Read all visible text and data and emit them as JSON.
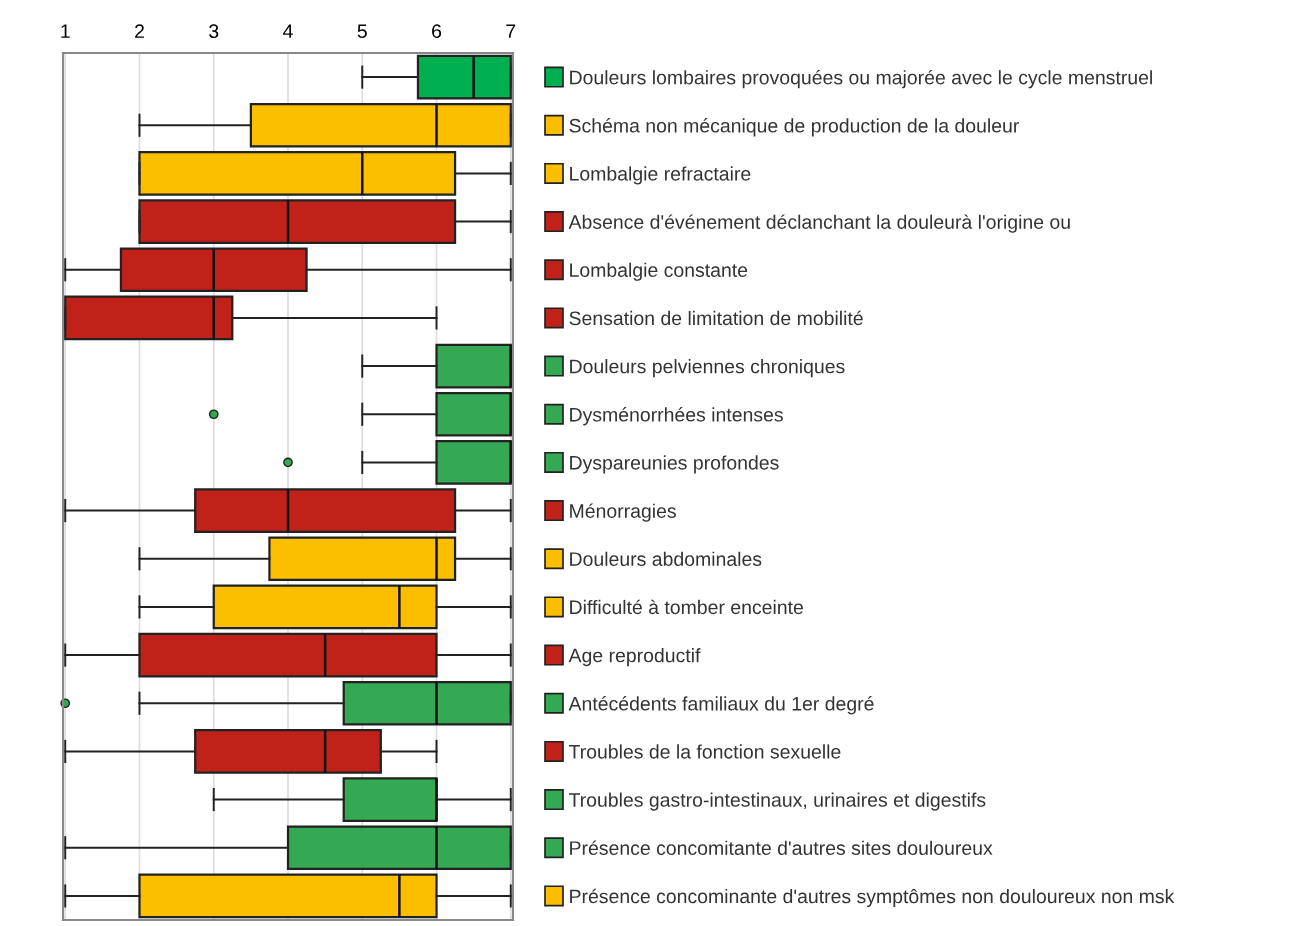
{
  "chart_data": {
    "type": "box",
    "orientation": "horizontal",
    "categories": [
      "Douleurs lombaires provoquées ou majorée avec le cycle menstruel",
      "Schéma non mécanique de production de la douleur",
      "Lombalgie refractaire",
      "Absence d'événement déclanchant la douleurà l'origine ou",
      "Lombalgie constante",
      "Sensation de limitation de mobilité",
      "Douleurs pelviennes chroniques",
      "Dysménorrhées intenses",
      "Dyspareunies profondes",
      "Ménorragies",
      "Douleurs abdominales",
      "Difficulté à tomber enceinte",
      "Age reproductif",
      "Antécédents familiaux du 1er degré",
      "Troubles de la fonction sexuelle",
      "Troubles gastro-intestinaux, urinaires et digestifs",
      "Présence concomitante d'autres sites douloureux",
      "Présence concominante d'autres symptômes non douloureux non msk"
    ],
    "colors": [
      "#00b050",
      "#fbbf00",
      "#fbbf00",
      "#c0221a",
      "#c0221a",
      "#c0221a",
      "#34a853",
      "#34a853",
      "#34a853",
      "#c0221a",
      "#fbbf00",
      "#fbbf00",
      "#c0221a",
      "#34a853",
      "#c0221a",
      "#34a853",
      "#34a853",
      "#fbbf00"
    ],
    "boxes": [
      {
        "low": 5,
        "q1": 5.75,
        "median": 6.5,
        "q3": 7,
        "high": 7
      },
      {
        "low": 2,
        "q1": 3.5,
        "median": 6,
        "q3": 7,
        "high": 7
      },
      {
        "low": 2,
        "q1": 2,
        "median": 5,
        "q3": 6.25,
        "high": 7
      },
      {
        "low": 2,
        "q1": 2,
        "median": 4,
        "q3": 6.25,
        "high": 7
      },
      {
        "low": 1,
        "q1": 1.75,
        "median": 3,
        "q3": 4.25,
        "high": 7
      },
      {
        "low": 1,
        "q1": 1,
        "median": 3,
        "q3": 3.25,
        "high": 6
      },
      {
        "low": 5,
        "q1": 6,
        "median": 7,
        "q3": 7,
        "high": 7
      },
      {
        "low": 5,
        "q1": 6,
        "median": 7,
        "q3": 7,
        "high": 7,
        "outliers": [
          3
        ]
      },
      {
        "low": 5,
        "q1": 6,
        "median": 7,
        "q3": 7,
        "high": 7,
        "outliers": [
          4
        ]
      },
      {
        "low": 1,
        "q1": 2.75,
        "median": 4,
        "q3": 6.25,
        "high": 7
      },
      {
        "low": 2,
        "q1": 3.75,
        "median": 6,
        "q3": 6.25,
        "high": 7
      },
      {
        "low": 2,
        "q1": 3,
        "median": 5.5,
        "q3": 6,
        "high": 7
      },
      {
        "low": 1,
        "q1": 2,
        "median": 4.5,
        "q3": 6,
        "high": 7
      },
      {
        "low": 2,
        "q1": 4.75,
        "median": 6,
        "q3": 7,
        "high": 7,
        "outliers": [
          1
        ]
      },
      {
        "low": 1,
        "q1": 2.75,
        "median": 4.5,
        "q3": 5.25,
        "high": 6
      },
      {
        "low": 3,
        "q1": 4.75,
        "median": 6,
        "q3": 6,
        "high": 7
      },
      {
        "low": 1,
        "q1": 4,
        "median": 6,
        "q3": 7,
        "high": 7
      },
      {
        "low": 1,
        "q1": 2,
        "median": 5.5,
        "q3": 6,
        "high": 7
      }
    ],
    "xlim": [
      0.97,
      7.03
    ],
    "xticks": [
      1,
      2,
      3,
      4,
      5,
      6,
      7
    ],
    "grid": "x"
  }
}
